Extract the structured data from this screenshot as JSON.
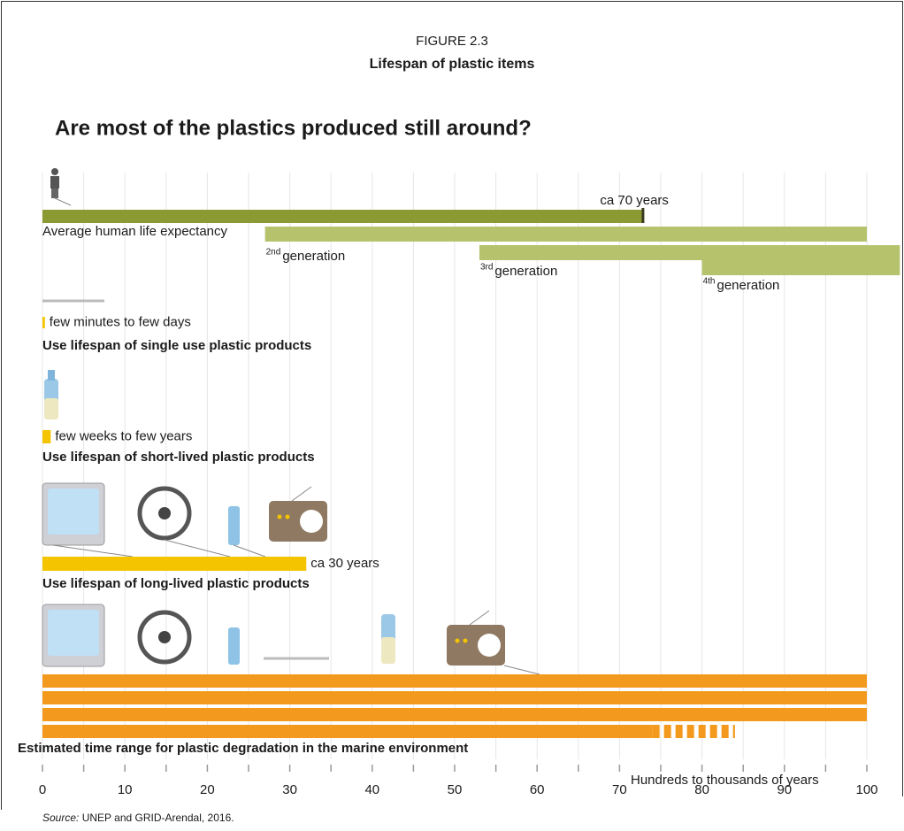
{
  "chart_data": {
    "type": "timeline",
    "figure_label": "FIGURE 2.3",
    "title": "Lifespan of plastic items",
    "subtitle": "Are most of the plastics produced still around?",
    "xlim": [
      0,
      100
    ],
    "xticks": [
      0,
      10,
      20,
      30,
      40,
      50,
      60,
      70,
      80,
      90,
      100
    ],
    "xminor": [
      5,
      15,
      25,
      35,
      45,
      55,
      65,
      75,
      85,
      95
    ],
    "grid": true,
    "series": [
      {
        "name": "Average human life expectancy",
        "note": "ca 70 years",
        "color": "#8c9a33",
        "values": [
          [
            0,
            73
          ]
        ]
      },
      {
        "ordinal": "2nd",
        "name": "generation",
        "color": "#b6c36c",
        "values": [
          [
            27,
            100
          ]
        ]
      },
      {
        "ordinal": "3rd",
        "name": "generation",
        "color": "#b6c36c",
        "values": [
          [
            53,
            104
          ]
        ]
      },
      {
        "ordinal": "4th",
        "name": "generation",
        "color": "#b6c36c",
        "values": [
          [
            80,
            104
          ]
        ]
      },
      {
        "name": "Use lifespan of single use plastic products",
        "note": "few minutes to few days",
        "color": "#f5c400",
        "values": [
          [
            0,
            0.3
          ]
        ]
      },
      {
        "name": "Use lifespan of short-lived plastic products",
        "note": "few weeks to few years",
        "color": "#f5c400",
        "values": [
          [
            0,
            1
          ]
        ]
      },
      {
        "name": "Use lifespan of long-lived plastic products",
        "note": "ca 30 years",
        "color": "#f5c400",
        "values": [
          [
            0,
            32
          ]
        ]
      },
      {
        "name": "Estimated time range for plastic degradation in the marine environment",
        "note": "Hundreds to thousands of years",
        "color": "#f39a1e",
        "values": [
          [
            0,
            100
          ],
          [
            0,
            100
          ],
          [
            0,
            100
          ],
          [
            0,
            74
          ],
          [
            74,
            84
          ]
        ],
        "dashed": [
          false,
          false,
          false,
          false,
          true
        ]
      }
    ],
    "source_label": "Source:",
    "source_text": "UNEP and GRID-Arendal, 2016."
  }
}
